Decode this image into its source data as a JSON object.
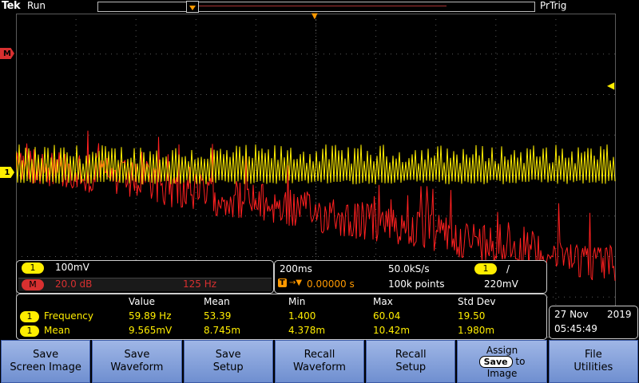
{
  "header": {
    "brand": "Tek",
    "run_state": "Run",
    "trigger_status": "PrTrig"
  },
  "markers": {
    "math": "M",
    "ch1": "1"
  },
  "channel_panel": {
    "ch1": {
      "label": "1",
      "scale": "100mV"
    },
    "math": {
      "label": "M",
      "scale": "20.0 dB",
      "freq": "125 Hz"
    }
  },
  "horizontal_panel": {
    "time_div": "200ms",
    "sample_rate": "50.0kS/s",
    "trigger_source": "1",
    "trigger_slope": "/",
    "delay_label": "T",
    "delay": "0.00000 s",
    "record_length": "100k points",
    "trigger_level": "220mV"
  },
  "measurements": {
    "headers": [
      "Value",
      "Mean",
      "Min",
      "Max",
      "Std Dev"
    ],
    "rows": [
      {
        "channel": "1",
        "name": "Frequency",
        "value": "59.89 Hz",
        "mean": "53.39",
        "min": "1.400",
        "max": "60.04",
        "std": "19.50"
      },
      {
        "channel": "1",
        "name": "Mean",
        "value": "9.565mV",
        "mean": "8.745m",
        "min": "4.378m",
        "max": "10.42m",
        "std": "1.980m"
      }
    ]
  },
  "datetime": {
    "date_day": "27 Nov",
    "year": "2019",
    "time": "05:45:49"
  },
  "softkeys": [
    {
      "line1": "Save",
      "line2": "Screen Image"
    },
    {
      "line1": "Save",
      "line2": "Waveform"
    },
    {
      "line1": "Save",
      "line2": "Setup"
    },
    {
      "line1": "Recall",
      "line2": "Waveform"
    },
    {
      "line1": "Recall",
      "line2": "Setup"
    },
    {
      "line1": "Assign",
      "pill": "Save",
      "to": "to",
      "line3": "Image"
    },
    {
      "line1": "File",
      "line2": "Utilities"
    }
  ],
  "colors": {
    "ch1": "#ffee00",
    "math": "#ff2020",
    "grid": "#5a5a5a",
    "button": "#8fa9e0"
  }
}
